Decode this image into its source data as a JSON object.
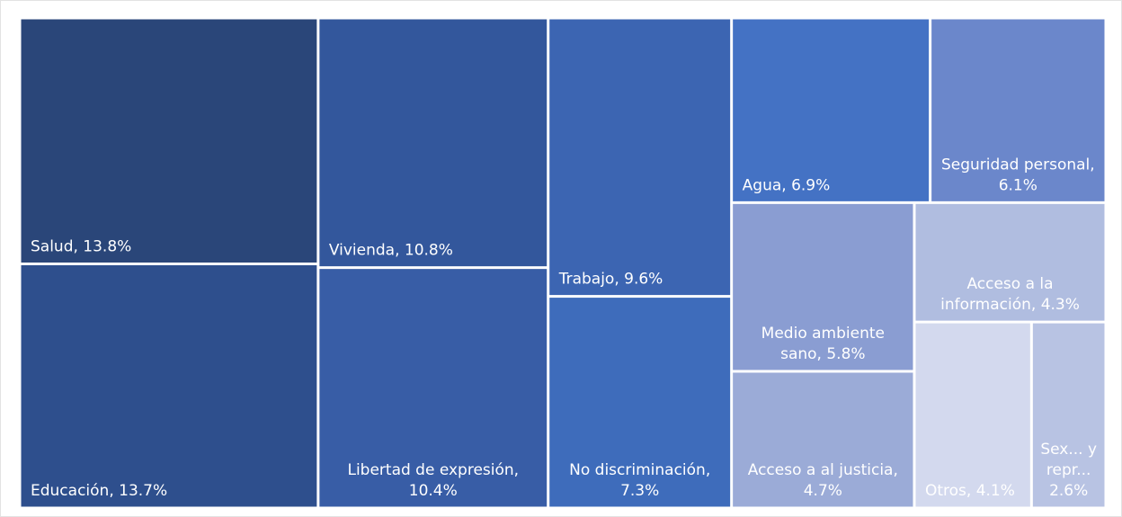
{
  "chart_data": {
    "type": "treemap",
    "values": [
      13.8,
      13.7,
      10.8,
      10.4,
      9.6,
      7.3,
      6.9,
      6.1,
      5.8,
      4.7,
      4.3,
      4.1,
      2.6
    ],
    "value_labels": [
      "Salud, 13.8%",
      "Educación, 13.7%",
      "Vivienda, 10.8%",
      "Libertad de expresión, 10.4%",
      "Trabajo, 9.6%",
      "No discriminación, 7.3%",
      "Agua, 6.9%",
      "Seguridad personal, 6.1%",
      "Medio ambiente sano, 5.8%",
      "Acceso a al justicia, 4.7%",
      "Acceso a la información, 4.3%",
      "Otros, 4.1%",
      "Sex... y repr... 2.6%"
    ],
    "colors": [
      "#2a4679",
      "#2e4f8d",
      "#33579c",
      "#385da6",
      "#3c65b2",
      "#3e6cbb",
      "#4472c4",
      "#6b87cb",
      "#8a9dd2",
      "#9babd7",
      "#b0bde0",
      "#d3d9ee",
      "#b8c3e3"
    ]
  }
}
